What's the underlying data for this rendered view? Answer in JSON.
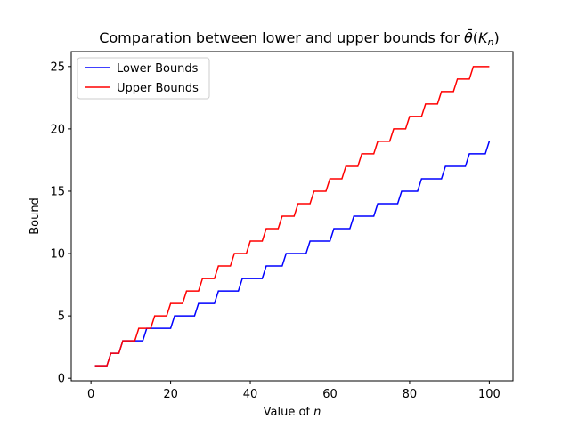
{
  "chart_data": {
    "type": "line",
    "title": "Comparation between lower and upper bounds for θ̄(Kₙ)",
    "title_parts": {
      "prefix": "Comparation between lower and upper bounds for ",
      "theta": "θ̄",
      "open": "(",
      "K": "K",
      "n": "n",
      "close": ")"
    },
    "xlabel": "Value of n",
    "xlabel_parts": {
      "prefix": "Value of ",
      "var": "n"
    },
    "ylabel": "Bound",
    "xlim": [
      -4.95,
      105.95
    ],
    "ylim": [
      -0.2,
      26.2
    ],
    "xticks": [
      0,
      20,
      40,
      60,
      80,
      100
    ],
    "yticks": [
      0,
      5,
      10,
      15,
      20,
      25
    ],
    "grid": false,
    "legend_position": "upper-left",
    "x": {
      "start": 1,
      "end": 100
    },
    "series": [
      {
        "name": "Lower Bounds",
        "color": "#0000ff",
        "steps": [
          [
            1,
            1
          ],
          [
            5,
            2
          ],
          [
            8,
            3
          ],
          [
            14,
            4
          ],
          [
            21,
            5
          ],
          [
            27,
            6
          ],
          [
            32,
            7
          ],
          [
            38,
            8
          ],
          [
            44,
            9
          ],
          [
            49,
            10
          ],
          [
            55,
            11
          ],
          [
            61,
            12
          ],
          [
            66,
            13
          ],
          [
            72,
            14
          ],
          [
            78,
            15
          ],
          [
            83,
            16
          ],
          [
            89,
            17
          ],
          [
            95,
            18
          ],
          [
            100,
            19
          ]
        ]
      },
      {
        "name": "Upper Bounds",
        "color": "#ff0000",
        "steps": [
          [
            1,
            1
          ],
          [
            5,
            2
          ],
          [
            8,
            3
          ],
          [
            12,
            4
          ],
          [
            16,
            5
          ],
          [
            20,
            6
          ],
          [
            24,
            7
          ],
          [
            28,
            8
          ],
          [
            32,
            9
          ],
          [
            36,
            10
          ],
          [
            40,
            11
          ],
          [
            44,
            12
          ],
          [
            48,
            13
          ],
          [
            52,
            14
          ],
          [
            56,
            15
          ],
          [
            60,
            16
          ],
          [
            64,
            17
          ],
          [
            68,
            18
          ],
          [
            72,
            19
          ],
          [
            76,
            20
          ],
          [
            80,
            21
          ],
          [
            84,
            22
          ],
          [
            88,
            23
          ],
          [
            92,
            24
          ],
          [
            96,
            25
          ]
        ]
      }
    ]
  }
}
